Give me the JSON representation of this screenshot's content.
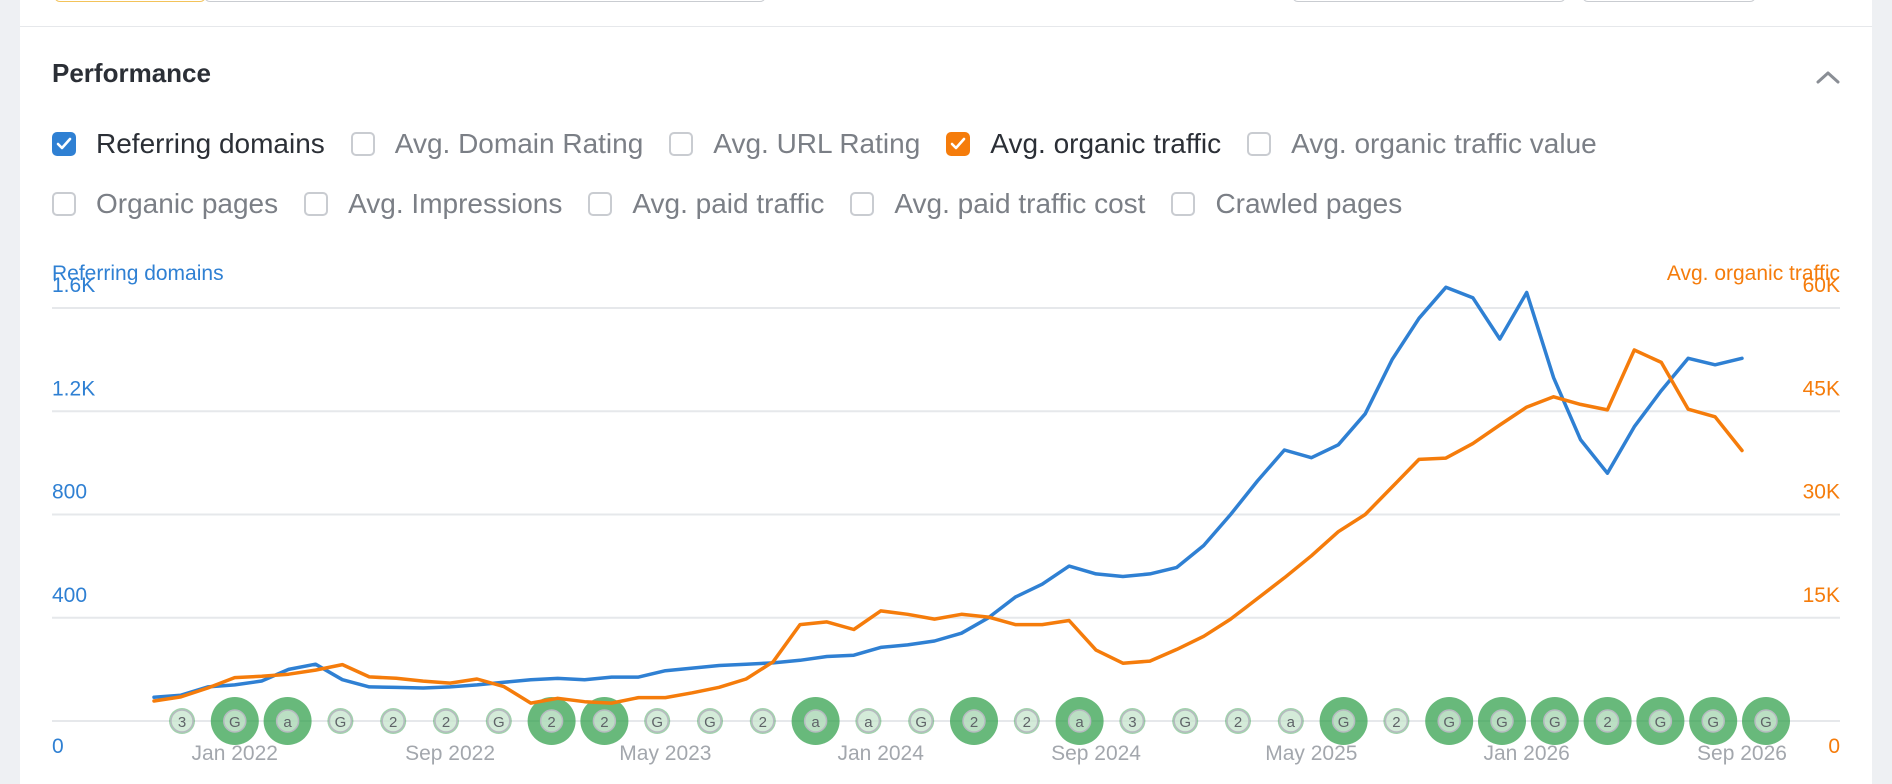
{
  "header": {
    "title": "Performance",
    "collapse_icon": "chevron-up-icon"
  },
  "metrics": {
    "row1": [
      {
        "label": "Referring domains",
        "checked": true,
        "color": "#2f80d3"
      },
      {
        "label": "Avg. Domain Rating",
        "checked": false
      },
      {
        "label": "Avg. URL Rating",
        "checked": false
      },
      {
        "label": "Avg. organic traffic",
        "checked": true,
        "color": "#f57c0b"
      },
      {
        "label": "Avg. organic traffic value",
        "checked": false
      }
    ],
    "row2": [
      {
        "label": "Organic pages",
        "checked": false
      },
      {
        "label": "Avg. Impressions",
        "checked": false
      },
      {
        "label": "Avg. paid traffic",
        "checked": false
      },
      {
        "label": "Avg. paid traffic cost",
        "checked": false
      },
      {
        "label": "Crawled pages",
        "checked": false
      }
    ]
  },
  "colors": {
    "referring_domains": "#2f80d3",
    "organic_traffic": "#f57c0b",
    "grid": "#e6e8eb",
    "tick_x": "#a3a7ad",
    "marker_green": "#2e9e48"
  },
  "chart_data": {
    "type": "line",
    "title": "",
    "left_axis_title": "Referring domains",
    "right_axis_title": "Avg. organic traffic",
    "left_ticks": [
      "0",
      "400",
      "800",
      "1.2K",
      "1.6K"
    ],
    "right_ticks": [
      "0",
      "15K",
      "30K",
      "45K",
      "60K"
    ],
    "ylim_left": [
      0,
      1600
    ],
    "ylim_right": [
      0,
      60000
    ],
    "x_tick_labels": [
      "Jan 2022",
      "Sep 2022",
      "May 2023",
      "Jan 2024",
      "Sep 2024",
      "May 2025",
      "Jan 2026",
      "Sep 2026"
    ],
    "x_tick_index": [
      3,
      11,
      19,
      27,
      35,
      43,
      51,
      59
    ],
    "x_start": "Oct 2021",
    "x_end": "Sep 2026",
    "grid": true,
    "series": [
      {
        "name": "Referring domains",
        "axis": "left",
        "values": [
          92,
          100,
          132,
          140,
          155,
          200,
          220,
          160,
          132,
          130,
          128,
          132,
          140,
          150,
          160,
          165,
          160,
          170,
          170,
          195,
          205,
          215,
          220,
          225,
          235,
          250,
          255,
          285,
          295,
          310,
          340,
          400,
          480,
          530,
          600,
          570,
          560,
          570,
          595,
          680,
          800,
          930,
          1050,
          1020,
          1070,
          1190,
          1400,
          1560,
          1680,
          1640,
          1480,
          1660,
          1330,
          1090,
          960,
          1140,
          1280,
          1405,
          1380,
          1405
        ],
        "color": "#2f80d3"
      },
      {
        "name": "Avg. organic traffic",
        "axis": "right",
        "values": [
          2900,
          3500,
          4800,
          6300,
          6500,
          6800,
          7400,
          8200,
          6400,
          6200,
          5800,
          5500,
          6100,
          5000,
          2600,
          3300,
          2800,
          2600,
          3400,
          3400,
          4100,
          4900,
          6100,
          8600,
          14000,
          14400,
          13300,
          16000,
          15500,
          14800,
          15500,
          15100,
          14000,
          14000,
          14600,
          10300,
          8400,
          8700,
          10400,
          12300,
          14800,
          17800,
          20800,
          24000,
          27500,
          30000,
          34000,
          38000,
          38200,
          40300,
          43000,
          45600,
          47100,
          46000,
          45200,
          53900,
          52100,
          45300,
          44200,
          39300
        ],
        "color": "#f57c0b"
      }
    ],
    "annotation_markers": {
      "description_symbols": [
        "G",
        "a",
        "2",
        "3"
      ],
      "labels": [
        "3",
        "G",
        "a",
        "G",
        "2",
        "2",
        "G",
        "2",
        "2",
        "G",
        "G",
        "2",
        "a",
        "a",
        "G",
        "2",
        "2",
        "a",
        "3",
        "G",
        "2",
        "a",
        "G",
        "2",
        "G",
        "G",
        "G",
        "2",
        "G",
        "G",
        "G"
      ]
    }
  }
}
